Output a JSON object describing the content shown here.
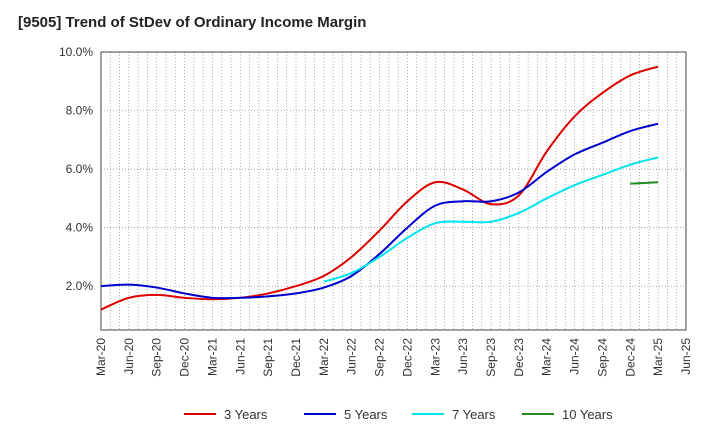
{
  "chart_data": {
    "type": "line",
    "title": "[9505]  Trend of StDev of Ordinary Income Margin",
    "xlabel": "",
    "ylabel": "",
    "x": [
      "Mar-20",
      "Jun-20",
      "Sep-20",
      "Dec-20",
      "Mar-21",
      "Jun-21",
      "Sep-21",
      "Dec-21",
      "Mar-22",
      "Jun-22",
      "Sep-22",
      "Dec-22",
      "Mar-23",
      "Jun-23",
      "Sep-23",
      "Dec-23",
      "Mar-24",
      "Jun-24",
      "Sep-24",
      "Dec-24",
      "Mar-25",
      "Jun-25"
    ],
    "y_ticks": [
      "2.0%",
      "4.0%",
      "6.0%",
      "8.0%",
      "10.0%"
    ],
    "ylim": [
      0.5,
      10.0
    ],
    "grid": true,
    "legend_position": "bottom",
    "series": [
      {
        "name": "3 Years",
        "color": "#dd0000",
        "values": [
          1.2,
          1.6,
          1.7,
          1.6,
          1.55,
          1.6,
          1.75,
          2.0,
          2.35,
          3.0,
          3.9,
          4.9,
          5.55,
          5.3,
          4.8,
          5.1,
          6.6,
          7.8,
          8.6,
          9.2,
          9.5,
          null
        ]
      },
      {
        "name": "5 Years",
        "color": "#0000cc",
        "values": [
          2.0,
          2.05,
          1.95,
          1.75,
          1.6,
          1.6,
          1.65,
          1.75,
          1.95,
          2.35,
          3.1,
          4.0,
          4.75,
          4.9,
          4.9,
          5.2,
          5.9,
          6.5,
          6.9,
          7.3,
          7.55,
          null
        ]
      },
      {
        "name": "7 Years",
        "color": "#00e5ee",
        "values": [
          null,
          null,
          null,
          null,
          null,
          null,
          null,
          null,
          2.15,
          2.45,
          3.0,
          3.65,
          4.15,
          4.2,
          4.2,
          4.5,
          5.0,
          5.45,
          5.8,
          6.15,
          6.4,
          null
        ]
      },
      {
        "name": "10 Years",
        "color": "#228b22",
        "values": [
          null,
          null,
          null,
          null,
          null,
          null,
          null,
          null,
          null,
          null,
          null,
          null,
          null,
          null,
          null,
          null,
          null,
          null,
          null,
          5.5,
          5.55,
          null
        ]
      }
    ]
  }
}
